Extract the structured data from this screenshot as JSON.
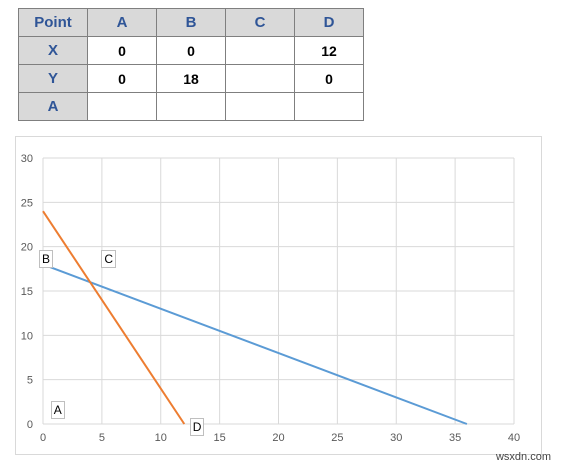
{
  "table": {
    "headers": [
      "Point",
      "A",
      "B",
      "C",
      "D"
    ],
    "rows": [
      {
        "label": "X",
        "cells": [
          "0",
          "0",
          "",
          "12"
        ]
      },
      {
        "label": "Y",
        "cells": [
          "0",
          "18",
          "",
          "0"
        ]
      },
      {
        "label": "A",
        "cells": [
          "",
          "",
          "",
          ""
        ]
      }
    ]
  },
  "chart_data": {
    "type": "line",
    "xlim": [
      0,
      40
    ],
    "ylim": [
      0,
      30
    ],
    "x_ticks": [
      0,
      5,
      10,
      15,
      20,
      25,
      30,
      35,
      40
    ],
    "y_ticks": [
      0,
      5,
      10,
      15,
      20,
      25,
      30
    ],
    "grid": true,
    "series": [
      {
        "color": "#5b9bd5",
        "points": [
          [
            0,
            18
          ],
          [
            36,
            0
          ]
        ]
      },
      {
        "color": "#ed7d31",
        "points": [
          [
            0,
            24
          ],
          [
            12,
            0
          ]
        ]
      }
    ],
    "point_labels": [
      {
        "text": "A",
        "x": 1,
        "y": 1.5
      },
      {
        "text": "B",
        "x": 0,
        "y": 18.5
      },
      {
        "text": "C",
        "x": 5.3,
        "y": 18.5
      },
      {
        "text": "D",
        "x": 12.8,
        "y": -0.5
      }
    ]
  },
  "watermark": "wsxdn.com"
}
